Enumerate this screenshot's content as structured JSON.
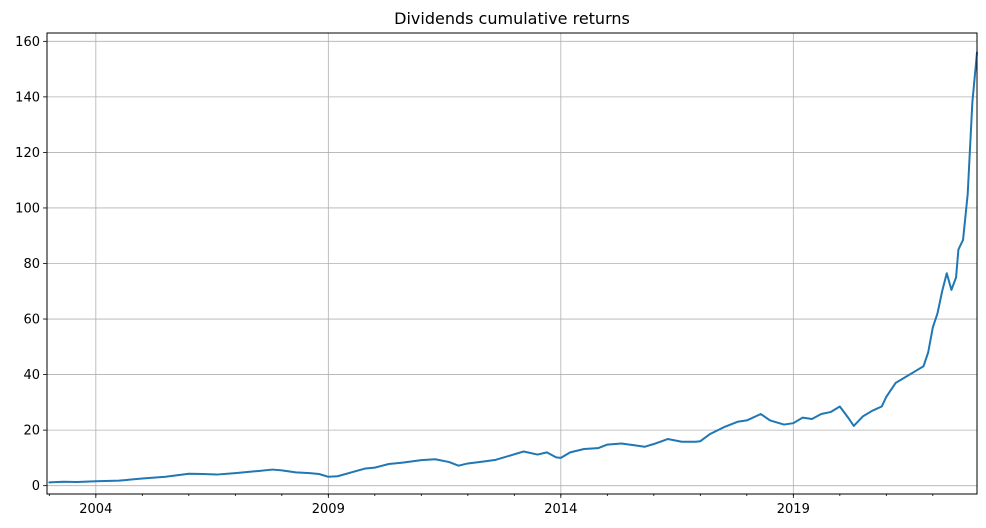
{
  "chart_data": {
    "type": "line",
    "title": "Dividends cumulative returns",
    "xlabel": "",
    "ylabel": "",
    "grid": true,
    "xlim": [
      2002.95,
      2022.95
    ],
    "ylim": [
      -3,
      163
    ],
    "x_ticks": [
      {
        "value": 2004,
        "label": "2004"
      },
      {
        "value": 2009,
        "label": "2009"
      },
      {
        "value": 2014,
        "label": "2014"
      },
      {
        "value": 2019,
        "label": "2019"
      }
    ],
    "y_ticks": [
      {
        "value": 0,
        "label": "0"
      },
      {
        "value": 20,
        "label": "20"
      },
      {
        "value": 40,
        "label": "40"
      },
      {
        "value": 60,
        "label": "60"
      },
      {
        "value": 80,
        "label": "80"
      },
      {
        "value": 100,
        "label": "100"
      },
      {
        "value": 120,
        "label": "120"
      },
      {
        "value": 140,
        "label": "140"
      },
      {
        "value": 160,
        "label": "160"
      }
    ],
    "series": [
      {
        "name": "Dividends cumulative returns",
        "color": "#1f77b4",
        "x": [
          2003.0,
          2003.3,
          2003.6,
          2004.0,
          2004.5,
          2005.0,
          2005.5,
          2006.0,
          2006.3,
          2006.6,
          2007.0,
          2007.5,
          2007.8,
          2008.0,
          2008.3,
          2008.6,
          2008.8,
          2009.0,
          2009.2,
          2009.5,
          2009.8,
          2010.0,
          2010.3,
          2010.6,
          2011.0,
          2011.3,
          2011.6,
          2011.8,
          2012.0,
          2012.3,
          2012.6,
          2012.9,
          2013.2,
          2013.5,
          2013.7,
          2013.9,
          2014.0,
          2014.2,
          2014.5,
          2014.8,
          2015.0,
          2015.3,
          2015.6,
          2015.8,
          2016.0,
          2016.3,
          2016.6,
          2016.9,
          2017.0,
          2017.2,
          2017.5,
          2017.8,
          2018.0,
          2018.3,
          2018.5,
          2018.8,
          2019.0,
          2019.2,
          2019.4,
          2019.6,
          2019.8,
          2020.0,
          2020.2,
          2020.3,
          2020.5,
          2020.7,
          2020.9,
          2021.0,
          2021.2,
          2021.4,
          2021.6,
          2021.8,
          2021.9,
          2022.0,
          2022.1,
          2022.2,
          2022.3,
          2022.4,
          2022.5,
          2022.55,
          2022.65,
          2022.75,
          2022.85,
          2022.95
        ],
        "y": [
          1.2,
          1.4,
          1.3,
          1.6,
          1.8,
          2.6,
          3.2,
          4.3,
          4.2,
          4.0,
          4.5,
          5.3,
          5.8,
          5.5,
          4.8,
          4.5,
          4.2,
          3.2,
          3.4,
          4.8,
          6.2,
          6.5,
          7.8,
          8.3,
          9.2,
          9.5,
          8.5,
          7.2,
          8.0,
          8.6,
          9.3,
          10.8,
          12.3,
          11.2,
          12.0,
          10.2,
          10.0,
          12.0,
          13.2,
          13.5,
          14.8,
          15.2,
          14.5,
          14.0,
          15.0,
          16.8,
          15.8,
          15.8,
          16.0,
          18.5,
          21.0,
          23.0,
          23.5,
          25.8,
          23.5,
          22.0,
          22.5,
          24.5,
          24.0,
          25.8,
          26.5,
          28.5,
          24.0,
          21.5,
          25.0,
          27.0,
          28.5,
          32.0,
          37.0,
          39.0,
          41.0,
          43.0,
          48.0,
          57.0,
          62.0,
          70.0,
          76.5,
          70.5,
          75.0,
          85.0,
          88.5,
          105.0,
          138.0,
          156.0
        ]
      }
    ]
  }
}
